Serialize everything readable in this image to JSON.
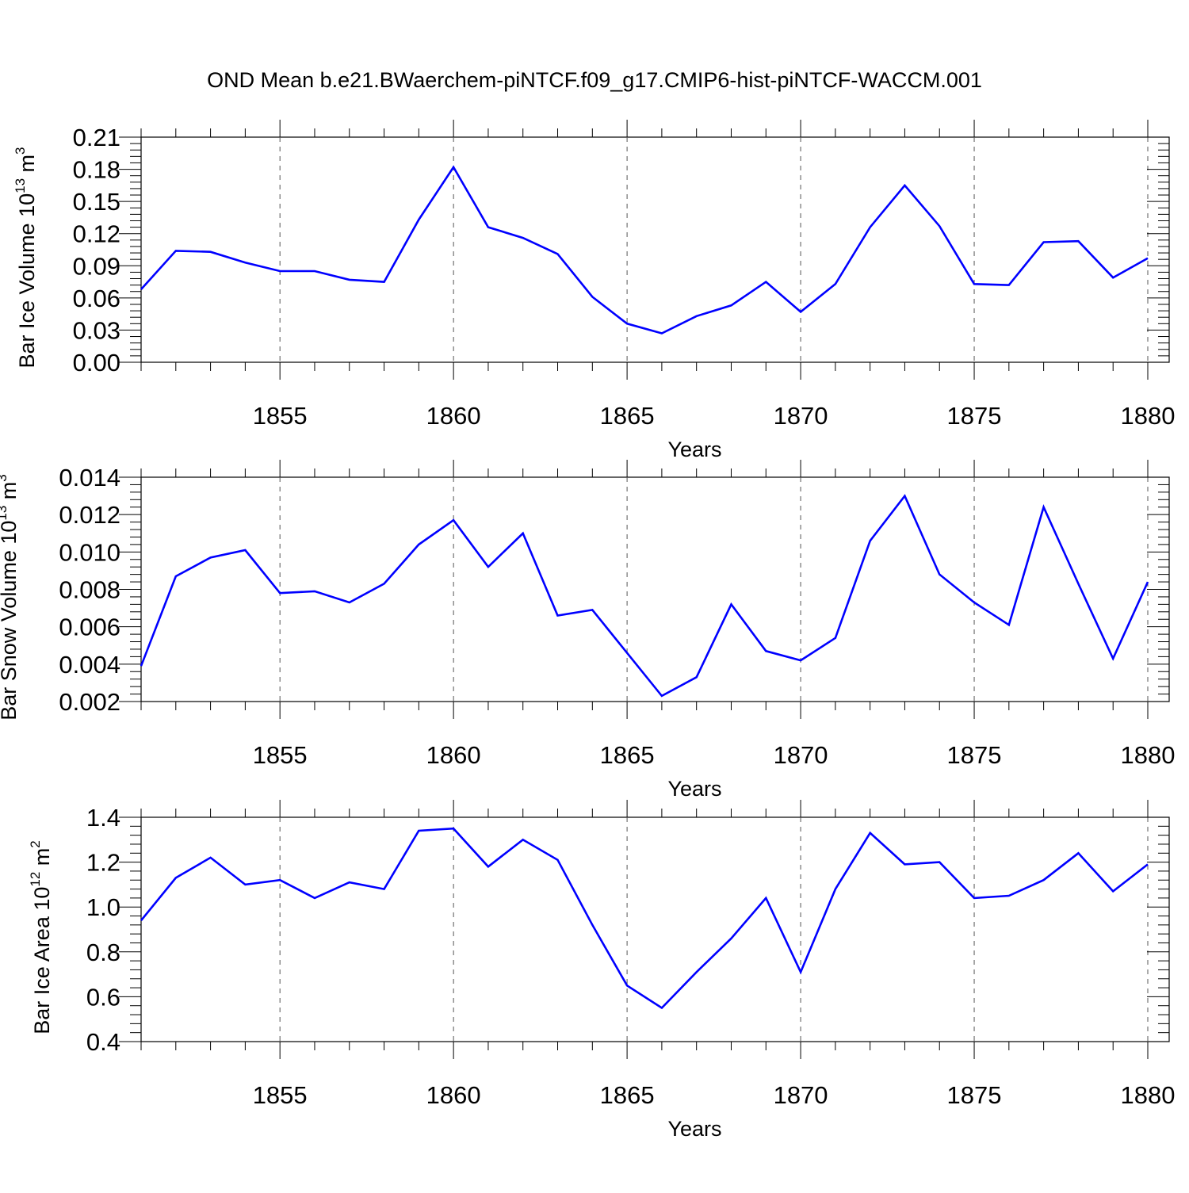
{
  "chart_data": {
    "type": "line",
    "title": "OND Mean b.e21.BWaerchem-piNTCF.f09_g17.CMIP6-hist-piNTCF-WACCM.001",
    "xlim": [
      1851,
      1880
    ],
    "x_ticks": [
      1855,
      1860,
      1865,
      1870,
      1875,
      1880
    ],
    "x_tick_labels": [
      "1855",
      "1860",
      "1865",
      "1870",
      "1875",
      "1880"
    ],
    "line_color": "#0000ff",
    "gridlines": "dashed vertical at major x ticks",
    "panels": [
      {
        "ylabel": "Bar Ice Volume 10",
        "ylabel_exp": "13",
        "ylabel_unit": " m",
        "ylabel_unit_exp": "3",
        "xlabel": "Years",
        "ylim": [
          0.0,
          0.21
        ],
        "y_ticks": [
          0.0,
          0.03,
          0.06,
          0.09,
          0.12,
          0.15,
          0.18,
          0.21
        ],
        "y_tick_labels": [
          "0.00",
          "0.03",
          "0.06",
          "0.09",
          "0.12",
          "0.15",
          "0.18",
          "0.21"
        ],
        "y_minor_step": 0.006,
        "series": [
          {
            "name": "Bar Ice Volume",
            "x": [
              1851,
              1852,
              1853,
              1854,
              1855,
              1856,
              1857,
              1858,
              1859,
              1860,
              1861,
              1862,
              1863,
              1864,
              1865,
              1866,
              1867,
              1868,
              1869,
              1870,
              1871,
              1872,
              1873,
              1874,
              1875,
              1876,
              1877,
              1878,
              1879,
              1880
            ],
            "values": [
              0.068,
              0.104,
              0.103,
              0.093,
              0.085,
              0.085,
              0.077,
              0.075,
              0.133,
              0.182,
              0.126,
              0.116,
              0.101,
              0.061,
              0.036,
              0.027,
              0.043,
              0.053,
              0.075,
              0.047,
              0.073,
              0.126,
              0.165,
              0.127,
              0.073,
              0.072,
              0.112,
              0.113,
              0.079,
              0.097
            ]
          }
        ]
      },
      {
        "ylabel": "Bar Snow Volume 10",
        "ylabel_exp": "13",
        "ylabel_unit": " m",
        "ylabel_unit_exp": "3",
        "xlabel": "Years",
        "ylim": [
          0.002,
          0.014
        ],
        "y_ticks": [
          0.002,
          0.004,
          0.006,
          0.008,
          0.01,
          0.012,
          0.014
        ],
        "y_tick_labels": [
          "0.002",
          "0.004",
          "0.006",
          "0.008",
          "0.010",
          "0.012",
          "0.014"
        ],
        "y_minor_step": 0.0004,
        "series": [
          {
            "name": "Bar Snow Volume",
            "x": [
              1851,
              1852,
              1853,
              1854,
              1855,
              1856,
              1857,
              1858,
              1859,
              1860,
              1861,
              1862,
              1863,
              1864,
              1865,
              1866,
              1867,
              1868,
              1869,
              1870,
              1871,
              1872,
              1873,
              1874,
              1875,
              1876,
              1877,
              1878,
              1879,
              1880
            ],
            "values": [
              0.0039,
              0.0087,
              0.0097,
              0.0101,
              0.0078,
              0.0079,
              0.0073,
              0.0083,
              0.0104,
              0.0117,
              0.0092,
              0.011,
              0.0066,
              0.0069,
              0.0046,
              0.0023,
              0.0033,
              0.0072,
              0.0047,
              0.0042,
              0.0054,
              0.0106,
              0.013,
              0.0088,
              0.0073,
              0.0061,
              0.0124,
              0.0083,
              0.0043,
              0.0084
            ]
          }
        ]
      },
      {
        "ylabel": "Bar Ice Area 10",
        "ylabel_exp": "12",
        "ylabel_unit": " m",
        "ylabel_unit_exp": "2",
        "xlabel": "Years",
        "ylim": [
          0.4,
          1.4
        ],
        "y_ticks": [
          0.4,
          0.6,
          0.8,
          1.0,
          1.2,
          1.4
        ],
        "y_tick_labels": [
          "0.4",
          "0.6",
          "0.8",
          "1.0",
          "1.2",
          "1.4"
        ],
        "y_minor_step": 0.04,
        "series": [
          {
            "name": "Bar Ice Area",
            "x": [
              1851,
              1852,
              1853,
              1854,
              1855,
              1856,
              1857,
              1858,
              1859,
              1860,
              1861,
              1862,
              1863,
              1864,
              1865,
              1866,
              1867,
              1868,
              1869,
              1870,
              1871,
              1872,
              1873,
              1874,
              1875,
              1876,
              1877,
              1878,
              1879,
              1880
            ],
            "values": [
              0.94,
              1.13,
              1.22,
              1.1,
              1.12,
              1.04,
              1.11,
              1.08,
              1.34,
              1.35,
              1.18,
              1.3,
              1.21,
              0.92,
              0.65,
              0.55,
              0.71,
              0.86,
              1.04,
              0.71,
              1.08,
              1.33,
              1.19,
              1.2,
              1.04,
              1.05,
              1.12,
              1.24,
              1.07,
              1.19
            ]
          }
        ]
      }
    ]
  }
}
